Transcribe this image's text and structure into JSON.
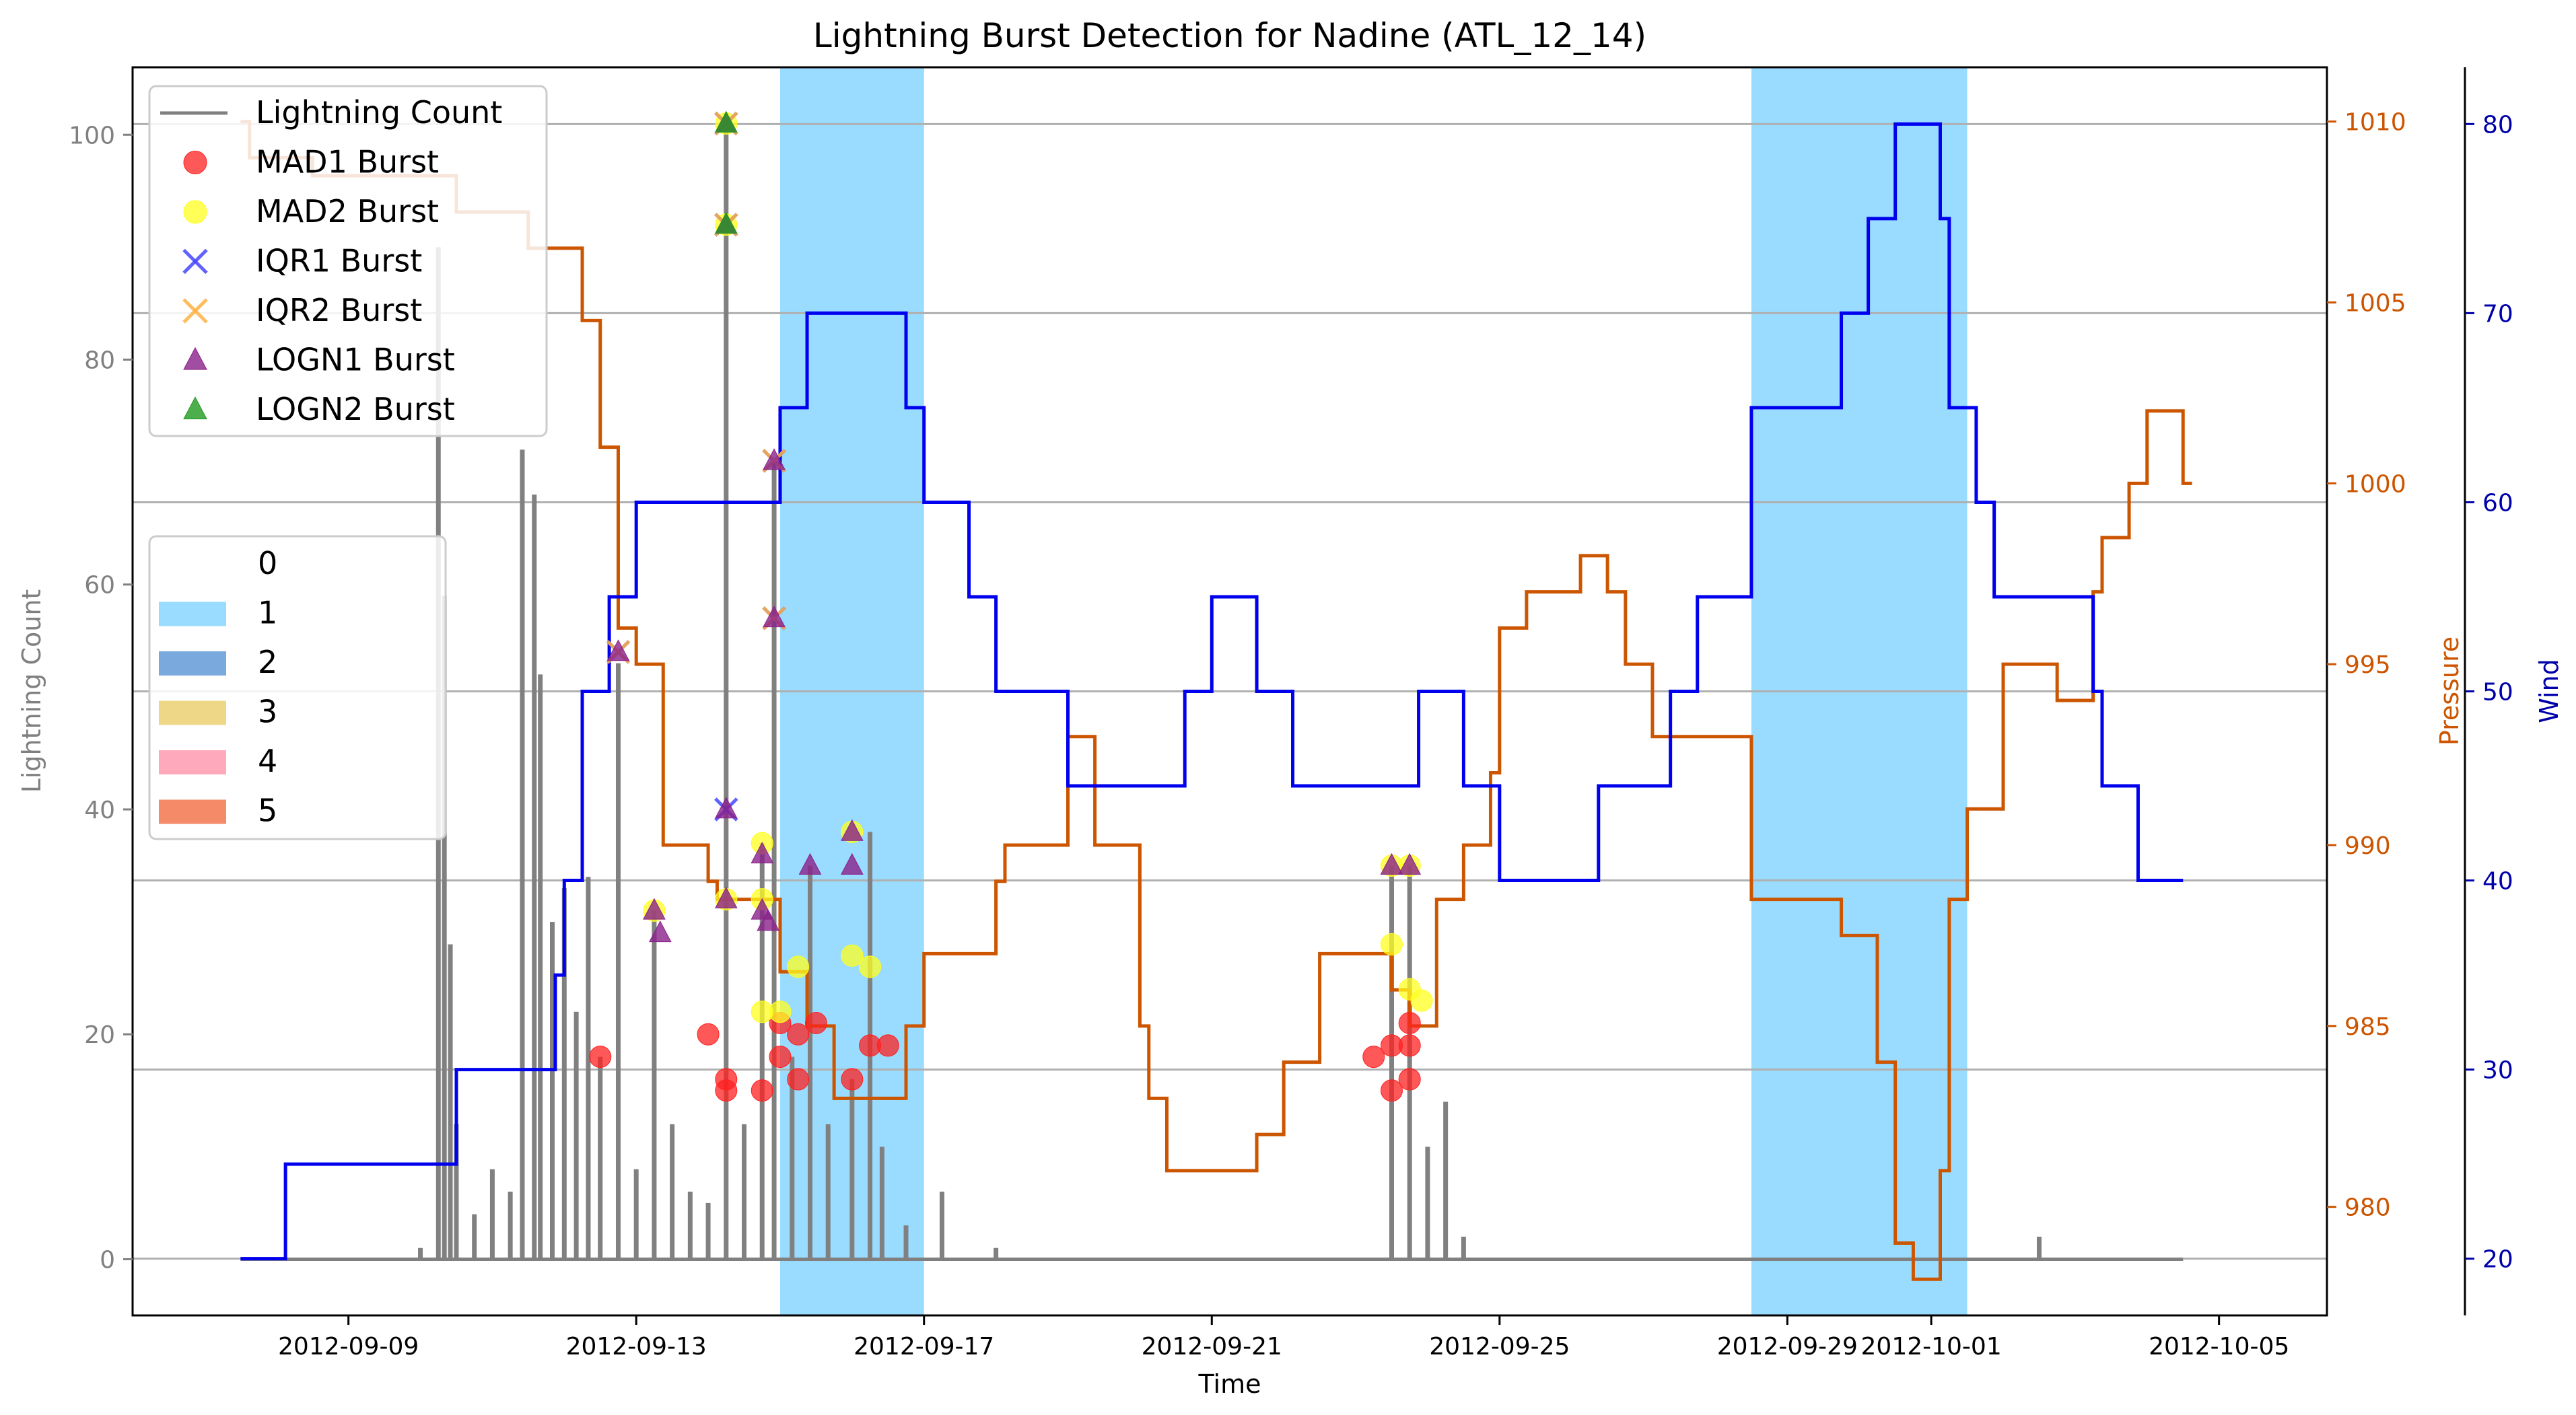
{
  "chart_data": {
    "type": "line",
    "title": "Lightning Burst Detection for Nadine (ATL_12_14)",
    "xlabel": "Time",
    "ylabel_left": "Lightning Count",
    "ylabel_right1": "Pressure",
    "ylabel_right2": "Wind",
    "xlim": [
      "2012-09-06T00:00",
      "2012-10-06T12:00"
    ],
    "ylim_left": [
      -5,
      106
    ],
    "ylim_pressure": [
      977,
      1011.5
    ],
    "ylim_wind": [
      17,
      83
    ],
    "x_ticks": [
      "2012-09-09",
      "2012-09-13",
      "2012-09-17",
      "2012-09-21",
      "2012-09-25",
      "2012-09-29",
      "2012-10-01",
      "2012-10-05"
    ],
    "y_ticks_left": [
      0,
      20,
      40,
      60,
      80,
      100
    ],
    "y_ticks_pressure": [
      980,
      985,
      990,
      995,
      1000,
      1005,
      1010
    ],
    "y_ticks_wind": [
      20,
      30,
      40,
      50,
      60,
      70,
      80
    ],
    "grid": "horizontal lines at wind ticks",
    "legend_series": {
      "position": "upper-left",
      "entries": [
        {
          "label": "Lightning Count",
          "marker": "line",
          "color": "#808080"
        },
        {
          "label": "MAD1 Burst",
          "marker": "circle",
          "color": "#ff2020"
        },
        {
          "label": "MAD2 Burst",
          "marker": "circle",
          "color": "#ffff20"
        },
        {
          "label": "IQR1 Burst",
          "marker": "x",
          "color": "#4545ff"
        },
        {
          "label": "IQR2 Burst",
          "marker": "x",
          "color": "#ffb040"
        },
        {
          "label": "LOGN1 Burst",
          "marker": "triangle",
          "color": "#8a208a"
        },
        {
          "label": "LOGN2 Burst",
          "marker": "triangle",
          "color": "#209a20"
        }
      ]
    },
    "legend_category": {
      "position": "center-left",
      "entries": [
        {
          "label": "0",
          "color": "#ffffff"
        },
        {
          "label": "1",
          "color": "#99dcff"
        },
        {
          "label": "2",
          "color": "#7aa9dd"
        },
        {
          "label": "3",
          "color": "#eed888"
        },
        {
          "label": "4",
          "color": "#ffaabc"
        },
        {
          "label": "5",
          "color": "#f48a68"
        }
      ]
    },
    "category_spans": [
      {
        "category": 1,
        "start": "2012-09-15T00:00",
        "end": "2012-09-17T00:00"
      },
      {
        "category": 1,
        "start": "2012-09-28T12:00",
        "end": "2012-10-01T12:00"
      }
    ],
    "series_colors": {
      "lightning": "#808080",
      "pressure": "#cc5500",
      "wind": "#0000ee"
    },
    "wind": {
      "name": "Wind",
      "steps": [
        [
          "2012-09-07T12:00",
          20
        ],
        [
          "2012-09-08T03:00",
          25
        ],
        [
          "2012-09-10T12:00",
          30
        ],
        [
          "2012-09-11T21:00",
          35
        ],
        [
          "2012-09-12T00:00",
          40
        ],
        [
          "2012-09-12T06:00",
          50
        ],
        [
          "2012-09-12T15:00",
          55
        ],
        [
          "2012-09-13T00:00",
          60
        ],
        [
          "2012-09-15T00:00",
          65
        ],
        [
          "2012-09-15T09:00",
          70
        ],
        [
          "2012-09-16T18:00",
          65
        ],
        [
          "2012-09-17T00:00",
          60
        ],
        [
          "2012-09-17T15:00",
          55
        ],
        [
          "2012-09-18T00:00",
          50
        ],
        [
          "2012-09-19T00:00",
          45
        ],
        [
          "2012-09-20T15:00",
          50
        ],
        [
          "2012-09-21T00:00",
          55
        ],
        [
          "2012-09-21T15:00",
          50
        ],
        [
          "2012-09-22T03:00",
          45
        ],
        [
          "2012-09-23T21:00",
          50
        ],
        [
          "2012-09-24T12:00",
          45
        ],
        [
          "2012-09-25T00:00",
          40
        ],
        [
          "2012-09-26T09:00",
          45
        ],
        [
          "2012-09-27T09:00",
          50
        ],
        [
          "2012-09-27T18:00",
          55
        ],
        [
          "2012-09-28T12:00",
          65
        ],
        [
          "2012-09-29T18:00",
          70
        ],
        [
          "2012-09-30T03:00",
          75
        ],
        [
          "2012-09-30T12:00",
          80
        ],
        [
          "2012-10-01T03:00",
          75
        ],
        [
          "2012-10-01T06:00",
          65
        ],
        [
          "2012-10-01T15:00",
          60
        ],
        [
          "2012-10-01T21:00",
          55
        ],
        [
          "2012-10-03T06:00",
          50
        ],
        [
          "2012-10-03T09:00",
          45
        ],
        [
          "2012-10-03T21:00",
          40
        ],
        [
          "2012-10-04T12:00",
          40
        ]
      ]
    },
    "pressure": {
      "name": "Pressure",
      "steps": [
        [
          "2012-09-07T12:00",
          1010
        ],
        [
          "2012-09-07T15:00",
          1009
        ],
        [
          "2012-09-08T12:00",
          1008.5
        ],
        [
          "2012-09-10T12:00",
          1007.5
        ],
        [
          "2012-09-11T12:00",
          1006.5
        ],
        [
          "2012-09-12T06:00",
          1004.5
        ],
        [
          "2012-09-12T12:00",
          1001
        ],
        [
          "2012-09-12T18:00",
          996
        ],
        [
          "2012-09-13T00:00",
          995
        ],
        [
          "2012-09-13T09:00",
          990
        ],
        [
          "2012-09-14T00:00",
          989
        ],
        [
          "2012-09-14T03:00",
          988.5
        ],
        [
          "2012-09-15T00:00",
          986.5
        ],
        [
          "2012-09-15T09:00",
          985
        ],
        [
          "2012-09-15T18:00",
          983
        ],
        [
          "2012-09-16T09:00",
          983
        ],
        [
          "2012-09-16T18:00",
          985
        ],
        [
          "2012-09-17T00:00",
          987
        ],
        [
          "2012-09-18T00:00",
          989
        ],
        [
          "2012-09-18T03:00",
          990
        ],
        [
          "2012-09-19T00:00",
          993
        ],
        [
          "2012-09-19T09:00",
          990
        ],
        [
          "2012-09-20T00:00",
          985
        ],
        [
          "2012-09-20T03:00",
          983
        ],
        [
          "2012-09-20T09:00",
          981
        ],
        [
          "2012-09-21T15:00",
          982
        ],
        [
          "2012-09-22T00:00",
          984
        ],
        [
          "2012-09-22T12:00",
          987
        ],
        [
          "2012-09-23T12:00",
          986
        ],
        [
          "2012-09-23T18:00",
          985
        ],
        [
          "2012-09-24T03:00",
          988.5
        ],
        [
          "2012-09-24T12:00",
          990
        ],
        [
          "2012-09-24T21:00",
          992
        ],
        [
          "2012-09-25T00:00",
          993
        ],
        [
          "2012-09-25T00:00",
          996
        ],
        [
          "2012-09-25T09:00",
          997
        ],
        [
          "2012-09-26T03:00",
          998
        ],
        [
          "2012-09-26T12:00",
          997
        ],
        [
          "2012-09-26T18:00",
          995
        ],
        [
          "2012-09-27T03:00",
          993
        ],
        [
          "2012-09-28T12:00",
          988.5
        ],
        [
          "2012-09-29T18:00",
          987.5
        ],
        [
          "2012-09-30T06:00",
          984
        ],
        [
          "2012-09-30T12:00",
          979
        ],
        [
          "2012-09-30T18:00",
          978
        ],
        [
          "2012-10-01T00:00",
          978
        ],
        [
          "2012-10-01T03:00",
          981
        ],
        [
          "2012-10-01T06:00",
          988.5
        ],
        [
          "2012-10-01T12:00",
          991
        ],
        [
          "2012-10-02T00:00",
          995
        ],
        [
          "2012-10-02T18:00",
          994
        ],
        [
          "2012-10-03T06:00",
          997
        ],
        [
          "2012-10-03T09:00",
          998.5
        ],
        [
          "2012-10-03T18:00",
          1000
        ],
        [
          "2012-10-04T00:00",
          1002
        ],
        [
          "2012-10-04T12:00",
          1000
        ],
        [
          "2012-10-04T15:00",
          1000
        ]
      ]
    },
    "lightning": {
      "name": "Lightning Count",
      "peaks": [
        [
          "2012-09-10T00:00",
          1
        ],
        [
          "2012-09-10T06:00",
          90
        ],
        [
          "2012-09-10T08:00",
          59
        ],
        [
          "2012-09-10T10:00",
          28
        ],
        [
          "2012-09-10T12:00",
          12
        ],
        [
          "2012-09-10T18:00",
          4
        ],
        [
          "2012-09-11T00:00",
          8
        ],
        [
          "2012-09-11T06:00",
          6
        ],
        [
          "2012-09-11T10:00",
          72
        ],
        [
          "2012-09-11T14:00",
          68
        ],
        [
          "2012-09-11T16:00",
          52
        ],
        [
          "2012-09-11T20:00",
          30
        ],
        [
          "2012-09-12T00:00",
          33
        ],
        [
          "2012-09-12T04:00",
          22
        ],
        [
          "2012-09-12T08:00",
          34
        ],
        [
          "2012-09-12T12:00",
          18
        ],
        [
          "2012-09-12T18:00",
          53
        ],
        [
          "2012-09-13T00:00",
          8
        ],
        [
          "2012-09-13T06:00",
          31
        ],
        [
          "2012-09-13T12:00",
          12
        ],
        [
          "2012-09-13T18:00",
          6
        ],
        [
          "2012-09-14T00:00",
          5
        ],
        [
          "2012-09-14T06:00",
          101
        ],
        [
          "2012-09-14T12:00",
          12
        ],
        [
          "2012-09-14T18:00",
          37
        ],
        [
          "2012-09-14T22:00",
          71
        ],
        [
          "2012-09-15T04:00",
          18
        ],
        [
          "2012-09-15T10:00",
          35
        ],
        [
          "2012-09-15T16:00",
          12
        ],
        [
          "2012-09-16T00:00",
          16
        ],
        [
          "2012-09-16T06:00",
          38
        ],
        [
          "2012-09-16T10:00",
          10
        ],
        [
          "2012-09-16T18:00",
          3
        ],
        [
          "2012-09-17T06:00",
          6
        ],
        [
          "2012-09-18T00:00",
          1
        ],
        [
          "2012-09-23T12:00",
          35
        ],
        [
          "2012-09-23T18:00",
          35
        ],
        [
          "2012-09-24T00:00",
          10
        ],
        [
          "2012-09-24T06:00",
          14
        ],
        [
          "2012-09-24T12:00",
          2
        ],
        [
          "2012-10-02T12:00",
          2
        ]
      ]
    },
    "bursts": {
      "MAD1": [
        [
          "2012-09-12T12:00",
          18
        ],
        [
          "2012-09-14T00:00",
          20
        ],
        [
          "2012-09-14T06:00",
          16
        ],
        [
          "2012-09-14T06:00",
          15
        ],
        [
          "2012-09-14T18:00",
          15
        ],
        [
          "2012-09-15T00:00",
          21
        ],
        [
          "2012-09-15T00:00",
          18
        ],
        [
          "2012-09-15T06:00",
          16
        ],
        [
          "2012-09-15T06:00",
          20
        ],
        [
          "2012-09-15T12:00",
          21
        ],
        [
          "2012-09-16T00:00",
          16
        ],
        [
          "2012-09-16T06:00",
          19
        ],
        [
          "2012-09-16T12:00",
          19
        ],
        [
          "2012-09-23T06:00",
          18
        ],
        [
          "2012-09-23T12:00",
          19
        ],
        [
          "2012-09-23T12:00",
          15
        ],
        [
          "2012-09-23T18:00",
          21
        ],
        [
          "2012-09-23T18:00",
          19
        ],
        [
          "2012-09-23T18:00",
          16
        ]
      ],
      "MAD2": [
        [
          "2012-09-13T06:00",
          31
        ],
        [
          "2012-09-14T06:00",
          32
        ],
        [
          "2012-09-14T06:00",
          101
        ],
        [
          "2012-09-14T06:00",
          92
        ],
        [
          "2012-09-14T18:00",
          37
        ],
        [
          "2012-09-14T18:00",
          32
        ],
        [
          "2012-09-14T18:00",
          22
        ],
        [
          "2012-09-15T00:00",
          22
        ],
        [
          "2012-09-15T06:00",
          26
        ],
        [
          "2012-09-16T00:00",
          38
        ],
        [
          "2012-09-16T00:00",
          27
        ],
        [
          "2012-09-16T06:00",
          26
        ],
        [
          "2012-09-23T12:00",
          35
        ],
        [
          "2012-09-23T12:00",
          28
        ],
        [
          "2012-09-23T18:00",
          35
        ],
        [
          "2012-09-23T18:00",
          24
        ],
        [
          "2012-09-23T22:00",
          23
        ]
      ],
      "IQR1": [
        [
          "2012-09-12T18:00",
          54
        ],
        [
          "2012-09-14T06:00",
          40
        ],
        [
          "2012-09-14T06:00",
          101
        ],
        [
          "2012-09-14T06:00",
          92
        ],
        [
          "2012-09-14T22:00",
          71
        ],
        [
          "2012-09-14T22:00",
          57
        ]
      ],
      "IQR2": [
        [
          "2012-09-12T18:00",
          54
        ],
        [
          "2012-09-14T06:00",
          101
        ],
        [
          "2012-09-14T06:00",
          92
        ],
        [
          "2012-09-14T22:00",
          71
        ],
        [
          "2012-09-14T22:00",
          57
        ]
      ],
      "LOGN1": [
        [
          "2012-09-12T18:00",
          54
        ],
        [
          "2012-09-13T06:00",
          31
        ],
        [
          "2012-09-13T08:00",
          29
        ],
        [
          "2012-09-14T06:00",
          40
        ],
        [
          "2012-09-14T06:00",
          32
        ],
        [
          "2012-09-14T06:00",
          101
        ],
        [
          "2012-09-14T06:00",
          92
        ],
        [
          "2012-09-14T18:00",
          36
        ],
        [
          "2012-09-14T18:00",
          31
        ],
        [
          "2012-09-14T20:00",
          30
        ],
        [
          "2012-09-14T22:00",
          71
        ],
        [
          "2012-09-14T22:00",
          57
        ],
        [
          "2012-09-15T10:00",
          35
        ],
        [
          "2012-09-16T00:00",
          38
        ],
        [
          "2012-09-16T00:00",
          35
        ],
        [
          "2012-09-23T12:00",
          35
        ],
        [
          "2012-09-23T18:00",
          35
        ]
      ],
      "LOGN2": [
        [
          "2012-09-14T06:00",
          101
        ],
        [
          "2012-09-14T06:00",
          92
        ]
      ]
    }
  }
}
